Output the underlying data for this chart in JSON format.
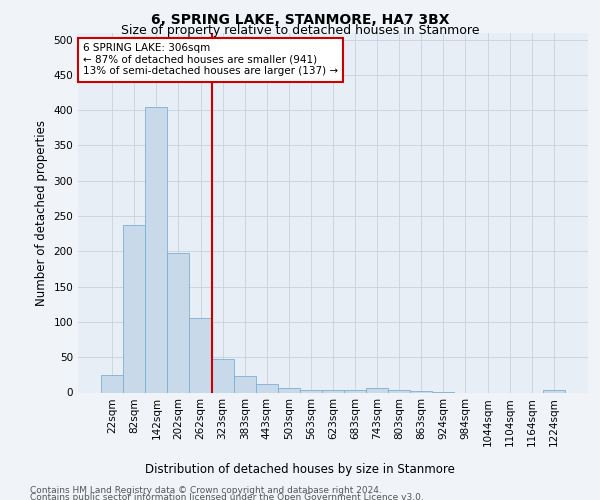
{
  "title": "6, SPRING LAKE, STANMORE, HA7 3BX",
  "subtitle": "Size of property relative to detached houses in Stanmore",
  "xlabel": "Distribution of detached houses by size in Stanmore",
  "ylabel": "Number of detached properties",
  "categories": [
    "22sqm",
    "82sqm",
    "142sqm",
    "202sqm",
    "262sqm",
    "323sqm",
    "383sqm",
    "443sqm",
    "503sqm",
    "563sqm",
    "623sqm",
    "683sqm",
    "743sqm",
    "803sqm",
    "863sqm",
    "924sqm",
    "984sqm",
    "1044sqm",
    "1104sqm",
    "1164sqm",
    "1224sqm"
  ],
  "values": [
    25,
    237,
    405,
    198,
    105,
    48,
    23,
    12,
    6,
    4,
    4,
    4,
    6,
    3,
    2,
    1,
    0,
    0,
    0,
    0,
    3
  ],
  "bar_color": "#c8d9ea",
  "bar_edge_color": "#7ab0d4",
  "vline_x_index": 4.5,
  "vline_color": "#cc0000",
  "annotation_text": "6 SPRING LAKE: 306sqm\n← 87% of detached houses are smaller (941)\n13% of semi-detached houses are larger (137) →",
  "annotation_box_color": "white",
  "annotation_box_edge_color": "#cc0000",
  "ylim": [
    0,
    510
  ],
  "yticks": [
    0,
    50,
    100,
    150,
    200,
    250,
    300,
    350,
    400,
    450,
    500
  ],
  "footer_line1": "Contains HM Land Registry data © Crown copyright and database right 2024.",
  "footer_line2": "Contains public sector information licensed under the Open Government Licence v3.0.",
  "background_color": "#f0f4f8",
  "plot_background_color": "#e8eef5",
  "grid_color": "#c0ccd8",
  "title_fontsize": 10,
  "subtitle_fontsize": 9,
  "axis_label_fontsize": 8.5,
  "tick_fontsize": 7.5,
  "annotation_fontsize": 7.5,
  "footer_fontsize": 6.5
}
